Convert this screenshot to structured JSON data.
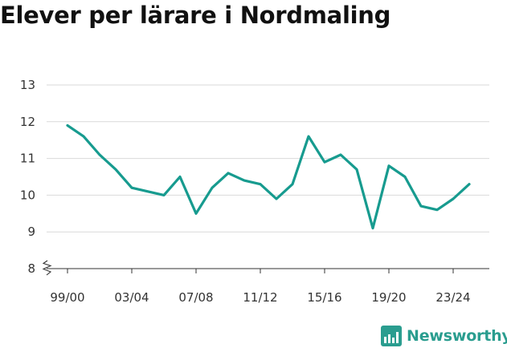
{
  "title": "Elever per lärare i Nordmaling",
  "brand": {
    "name": "Newsworthy",
    "icon": "newsworthy-logo-icon"
  },
  "colors": {
    "line": "#179b8f",
    "grid": "#d9d9d9",
    "axis": "#333333",
    "brand": "#2a9d8f"
  },
  "chart_data": {
    "type": "line",
    "title": "Elever per lärare i Nordmaling",
    "x": [
      "99/00",
      "00/01",
      "01/02",
      "02/03",
      "03/04",
      "04/05",
      "05/06",
      "06/07",
      "07/08",
      "08/09",
      "09/10",
      "10/11",
      "11/12",
      "12/13",
      "13/14",
      "14/15",
      "15/16",
      "16/17",
      "17/18",
      "18/19",
      "19/20",
      "20/21",
      "21/22",
      "22/23",
      "23/24",
      "24/25"
    ],
    "series": [
      {
        "values": [
          11.9,
          11.6,
          11.1,
          10.7,
          10.2,
          10.1,
          10.0,
          10.5,
          9.5,
          10.2,
          10.6,
          10.4,
          10.3,
          9.9,
          10.3,
          11.6,
          10.9,
          11.1,
          10.7,
          9.1,
          10.8,
          10.5,
          9.7,
          9.6,
          9.9,
          10.3
        ]
      }
    ],
    "xtick_labels": [
      "99/00",
      "03/04",
      "07/08",
      "11/12",
      "15/16",
      "19/20",
      "23/24"
    ],
    "yticks": [
      8,
      9,
      10,
      11,
      12,
      13
    ],
    "ylim": [
      8,
      13
    ],
    "y_axis_break": true,
    "grid": true,
    "xlabel": "",
    "ylabel": ""
  }
}
